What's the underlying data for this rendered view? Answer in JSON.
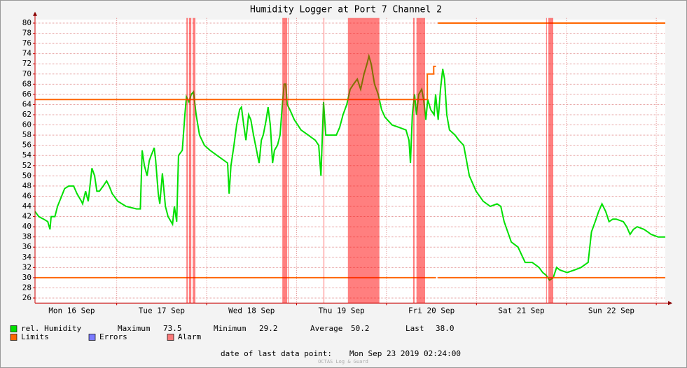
{
  "chart_data": {
    "type": "line",
    "title": "Humidity Logger at Port 7 Channel 2",
    "xlim": [
      2.2,
      170.4
    ],
    "xticks": [
      {
        "value": 12,
        "label": "Mon 16 Sep"
      },
      {
        "value": 36,
        "label": "Tue 17 Sep"
      },
      {
        "value": 60,
        "label": "Wed 18 Sep"
      },
      {
        "value": 84,
        "label": "Thu 19 Sep"
      },
      {
        "value": 108,
        "label": "Fri 20 Sep"
      },
      {
        "value": 132,
        "label": "Sat 21 Sep"
      },
      {
        "value": 156,
        "label": "Sun 22 Sep"
      }
    ],
    "xgrid": [
      24,
      48,
      72,
      96,
      120,
      144,
      168
    ],
    "ylim": [
      25,
      81
    ],
    "yticks": [
      26,
      28,
      30,
      32,
      34,
      36,
      38,
      40,
      42,
      44,
      46,
      48,
      50,
      52,
      54,
      56,
      58,
      60,
      62,
      64,
      66,
      68,
      70,
      72,
      74,
      76,
      78,
      80
    ],
    "grid": true,
    "series": [
      {
        "name": "rel. Humidity",
        "color": "#00e000",
        "x": [
          2.2,
          3.2,
          4.5,
          5.6,
          6.2,
          6.5,
          7.5,
          8.2,
          9.3,
          10.1,
          11.2,
          12.5,
          13.4,
          14.6,
          14.9,
          15.7,
          16.4,
          17.4,
          18.1,
          18.7,
          19.4,
          20.4,
          21.3,
          22.0,
          22.8,
          24.3,
          26.5,
          29.3,
          30.3,
          30.8,
          31.4,
          32.1,
          32.7,
          33.2,
          34.0,
          34.4,
          35.1,
          35.5,
          36.2,
          37.0,
          37.7,
          38.5,
          38.9,
          39.4,
          40.0,
          40.5,
          41.5,
          42.2,
          42.6,
          43.3,
          43.9,
          44.5,
          45.2,
          46.1,
          47.4,
          48.9,
          50.8,
          52.7,
          53.6,
          54.0,
          54.5,
          55.3,
          56.0,
          56.8,
          57.3,
          57.9,
          58.5,
          59.2,
          59.8,
          60.5,
          61.6,
          62.0,
          62.6,
          63.1,
          63.9,
          64.4,
          65.0,
          65.6,
          66.1,
          66.9,
          67.6,
          68.2,
          68.7,
          69.1,
          69.5,
          70.2,
          71.4,
          73.2,
          75.1,
          77.0,
          77.9,
          78.5,
          79.2,
          79.8,
          80.7,
          81.6,
          82.6,
          83.5,
          84.4,
          85.4,
          86.3,
          87.2,
          88.2,
          89.1,
          90.0,
          90.8,
          91.3,
          91.9,
          92.8,
          93.8,
          94.7,
          95.6,
          97.5,
          99.4,
          101.2,
          102.0,
          102.4,
          102.9,
          103.5,
          104.0,
          104.6,
          105.4,
          105.9,
          106.5,
          107.0,
          107.8,
          108.7,
          109.1,
          109.8,
          110.4,
          111.0,
          111.5,
          112.1,
          112.8,
          114.3,
          115.3,
          116.6,
          118.1,
          119.9,
          121.8,
          123.7,
          125.5,
          126.5,
          127.4,
          129.3,
          131.1,
          133.0,
          134.9,
          135.8,
          136.7,
          137.7,
          138.6,
          139.5,
          140.5,
          141.4,
          142.3,
          144.2,
          146.1,
          147.9,
          149.8,
          150.7,
          151.7,
          152.6,
          153.5,
          154.5,
          155.4,
          156.4,
          157.3,
          159.2,
          160.1,
          161.0,
          161.9,
          162.9,
          164.7,
          165.7,
          166.6,
          168.5,
          170.4
        ],
        "values": [
          43,
          42,
          41.5,
          41,
          39.5,
          42,
          42,
          44,
          46,
          47.5,
          48,
          48,
          46.5,
          45,
          44.5,
          47,
          45,
          51.5,
          50,
          47,
          47,
          48,
          49,
          48,
          46.5,
          45,
          44,
          43.5,
          43.5,
          55,
          52,
          50,
          53,
          54,
          55.5,
          53,
          46.5,
          44.5,
          50.5,
          44,
          42,
          41,
          40.5,
          44,
          41,
          54,
          55,
          62,
          65.5,
          64.5,
          66,
          66.5,
          62,
          58,
          56,
          55,
          54,
          53,
          52.5,
          46.5,
          52,
          56,
          60,
          63,
          63.5,
          60,
          57,
          62,
          61,
          58,
          54,
          52.5,
          57,
          58,
          61,
          63.5,
          60,
          52.5,
          55,
          56,
          58,
          64,
          68,
          68,
          64,
          63,
          61,
          59,
          58,
          57,
          56,
          50,
          64.5,
          58,
          58,
          58,
          58,
          59.5,
          62,
          64,
          67,
          68,
          69,
          67,
          70,
          72,
          73.5,
          72,
          68,
          66,
          63,
          61.5,
          60,
          59.5,
          59,
          57,
          52.5,
          62,
          66,
          62,
          66,
          67,
          65,
          61,
          65,
          63,
          62,
          66,
          61,
          67,
          71,
          69,
          62,
          59,
          58,
          57,
          56,
          50,
          47,
          45,
          44,
          44.5,
          44,
          41,
          37,
          36,
          33,
          33,
          32.5,
          32,
          31,
          30.5,
          29.5,
          30,
          32,
          31.5,
          31,
          31.5,
          32,
          33,
          39,
          41,
          43,
          44.5,
          43,
          41,
          41.5,
          41.5,
          41,
          40,
          38.5,
          39.5,
          40,
          39.5,
          39,
          38.5,
          38,
          38
        ]
      },
      {
        "name": "Limits",
        "color": "#ff6600",
        "x": [
          2.2,
          106.9,
          106.9,
          108.6,
          108.6,
          109.2,
          null,
          109.7,
          170.4,
          null,
          2.2,
          109.2,
          null,
          109.7,
          170.4
        ],
        "values": [
          65,
          65,
          70,
          70,
          71.5,
          71.5,
          null,
          80,
          80,
          null,
          30,
          30,
          null,
          30,
          30
        ]
      }
    ],
    "errors": {
      "name": "Errors",
      "color": "#7b7bff"
    },
    "alarm": {
      "name": "Alarm",
      "color": "#ff0000",
      "ranges": [
        [
          42.6,
          43.0
        ],
        [
          43.3,
          43.9
        ],
        [
          44.3,
          45.0
        ],
        [
          68.2,
          69.5
        ],
        [
          69.7,
          69.9
        ],
        [
          79.2,
          79.4
        ],
        [
          85.7,
          94.1
        ],
        [
          103.1,
          103.5
        ],
        [
          104.0,
          106.3
        ],
        [
          138.6,
          138.8
        ],
        [
          139.2,
          140.5
        ]
      ]
    },
    "stats": [
      {
        "label": "Maximum",
        "value": "73.5"
      },
      {
        "label": "Minimum",
        "value": "29.2"
      },
      {
        "label": "Average",
        "value": "50.2"
      },
      {
        "label": "Last",
        "value": "38.0"
      }
    ],
    "footer_label": "date of last data point:",
    "footer_value": "Mon Sep 23 2019 02:24:00",
    "watermark": "OCTAS Log & Guard"
  }
}
